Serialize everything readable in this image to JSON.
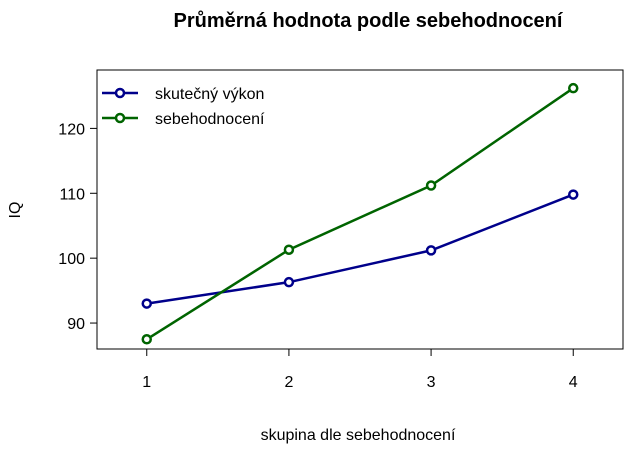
{
  "chart_data": {
    "type": "line",
    "title": "Průměrná hodnota podle sebehodnocení",
    "xlabel": "skupina dle sebehodnocení",
    "ylabel": "IQ",
    "categories": [
      "1",
      "2",
      "3",
      "4"
    ],
    "x": [
      1,
      2,
      3,
      4
    ],
    "xlim": [
      0.65,
      4.35
    ],
    "ylim": [
      86,
      129
    ],
    "yticks": [
      90,
      100,
      110,
      120
    ],
    "grid": false,
    "legend_position": "top-left",
    "series": [
      {
        "name": "skutečný výkon",
        "color": "#00008B",
        "values": [
          93.0,
          96.3,
          101.2,
          109.8
        ]
      },
      {
        "name": "sebehodnocení",
        "color": "#006400",
        "values": [
          87.5,
          101.3,
          111.2,
          126.2
        ]
      }
    ]
  }
}
